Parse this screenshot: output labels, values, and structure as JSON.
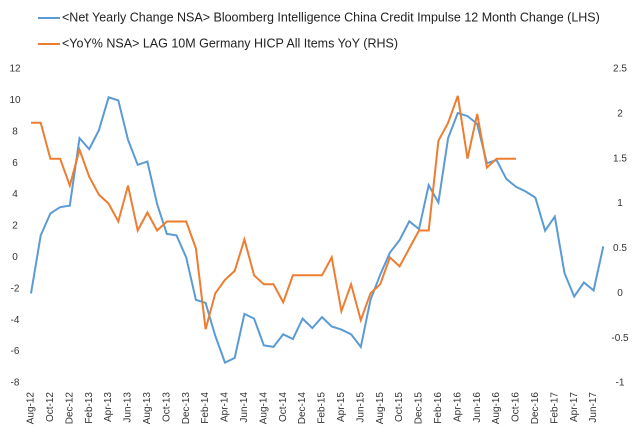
{
  "chart_data": {
    "type": "line",
    "categories": [
      "Aug-12",
      null,
      "Oct-12",
      null,
      "Dec-12",
      null,
      "Feb-13",
      null,
      "Apr-13",
      null,
      "Jun-13",
      null,
      "Aug-13",
      null,
      "Oct-13",
      null,
      "Dec-13",
      null,
      "Feb-14",
      null,
      "Apr-14",
      null,
      "Jun-14",
      null,
      "Aug-14",
      null,
      "Oct-14",
      null,
      "Dec-14",
      null,
      "Feb-15",
      null,
      "Apr-15",
      null,
      "Jun-15",
      null,
      "Aug-15",
      null,
      "Oct-15",
      null,
      "Dec-15",
      null,
      "Feb-16",
      null,
      "Apr-16",
      null,
      "Jun-16",
      null,
      "Aug-16",
      null,
      "Oct-16",
      null,
      "Dec-16",
      null,
      "Feb-17",
      null,
      "Apr-17",
      null,
      "Jun-17",
      null
    ],
    "series": [
      {
        "name": "<Net Yearly Change NSA> Bloomberg Intelligence China Credit Impulse 12 Month Change (LHS)",
        "color": "#5b9bd5",
        "values": [
          -2.3,
          1.4,
          2.8,
          3.2,
          3.3,
          7.6,
          6.9,
          8.1,
          10.2,
          10.0,
          7.5,
          5.9,
          6.1,
          3.4,
          1.5,
          1.4,
          0,
          -2.7,
          -2.9,
          -5,
          -6.7,
          -6.4,
          -3.6,
          -3.9,
          -5.6,
          -5.7,
          -4.9,
          -5.2,
          -3.9,
          -4.5,
          -3.8,
          -4.4,
          -4.6,
          -4.9,
          -5.7,
          -2.7,
          -1.1,
          0.3,
          1.1,
          2.3,
          1.8,
          4.6,
          3.5,
          7.6,
          9.2,
          9.0,
          8.5,
          6.0,
          6.2,
          5.0,
          4.5,
          4.2,
          3.8,
          1.7,
          2.6,
          -1.0,
          -2.5,
          -1.6,
          -2.1,
          0.7
        ]
      },
      {
        "name": "<YoY% NSA> LAG 10M Germany HICP All Items YoY (RHS)",
        "color": "#ed7d31",
        "axis": "y2",
        "values": [
          1.9,
          1.9,
          1.5,
          1.5,
          1.2,
          1.6,
          1.3,
          1.1,
          1.0,
          0.8,
          1.2,
          0.7,
          0.9,
          0.7,
          0.8,
          0.8,
          0.8,
          0.5,
          -0.4,
          0.0,
          0.15,
          0.25,
          0.6,
          0.2,
          0.1,
          0.1,
          -0.1,
          0.2,
          0.2,
          0.2,
          0.2,
          0.4,
          -0.2,
          0.1,
          -0.3,
          0.0,
          0.1,
          0.4,
          0.3,
          0.5,
          0.7,
          0.7,
          1.7,
          1.9,
          2.2,
          1.5,
          2.0,
          1.4,
          1.5,
          1.5,
          1.5,
          null,
          null,
          null,
          null,
          null,
          null,
          null,
          null,
          null
        ]
      }
    ],
    "ylim": [
      -8,
      12
    ],
    "yticks": [
      -8,
      -6,
      -4,
      -2,
      0,
      2,
      4,
      6,
      8,
      10,
      12
    ],
    "y2lim": [
      -1,
      2.5
    ],
    "y2ticks": [
      -1,
      -0.5,
      0,
      0.5,
      1,
      1.5,
      2,
      2.5
    ],
    "grid": false
  }
}
